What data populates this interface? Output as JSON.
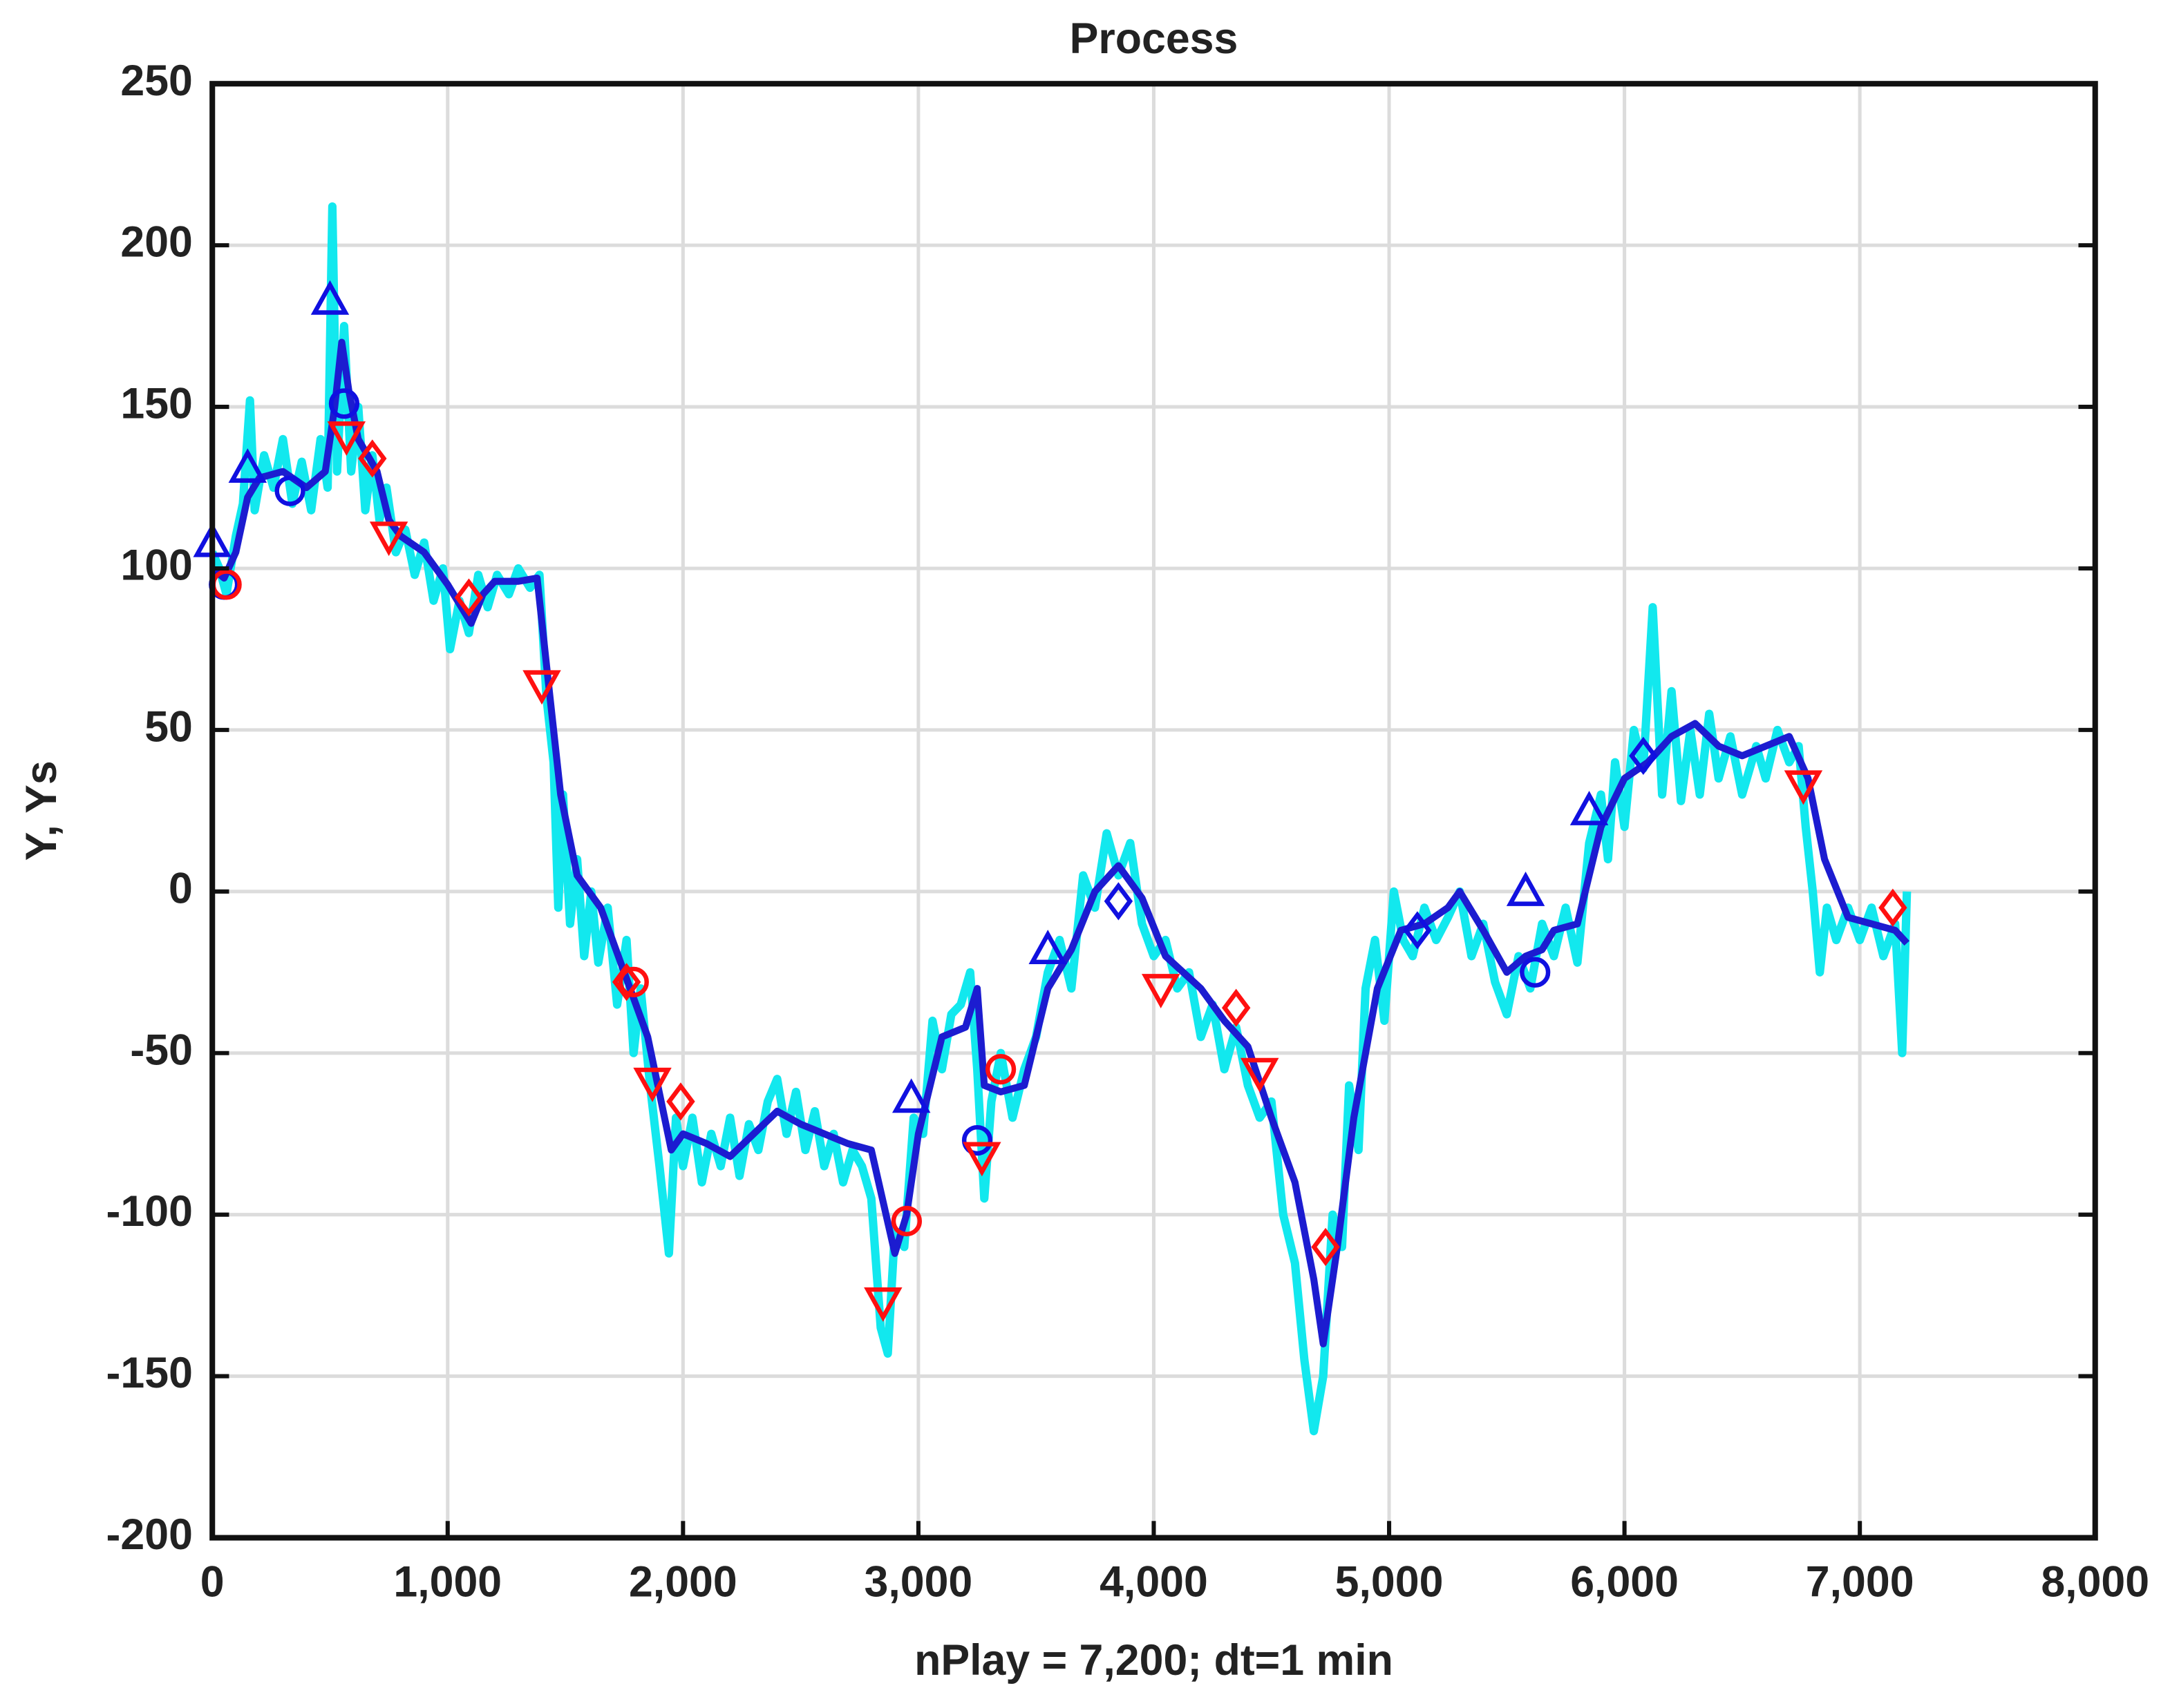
{
  "chart_data": {
    "type": "line",
    "title": "Process",
    "x_label": "nPlay = 7,200;   dt=1 min",
    "y_label": "Y,  Ys",
    "xlim": [
      0,
      8000
    ],
    "ylim": [
      -200,
      250
    ],
    "grid": true,
    "xticks": [
      0,
      {
        "value": 1000,
        "label": "1,000"
      },
      {
        "value": 2000,
        "label": "2,000"
      },
      {
        "value": 3000,
        "label": "3,000"
      },
      {
        "value": 4000,
        "label": "4,000"
      },
      {
        "value": 5000,
        "label": "5,000"
      },
      {
        "value": 6000,
        "label": "6,000"
      },
      {
        "value": 7000,
        "label": "7,000"
      },
      {
        "value": 8000,
        "label": "8,000"
      }
    ],
    "yticks": [
      -200,
      -150,
      -100,
      -50,
      0,
      50,
      100,
      150,
      200,
      250
    ],
    "series": [
      {
        "color": "#12e8ee",
        "width": 6,
        "x": [
          0,
          30,
          60,
          100,
          130,
          160,
          180,
          220,
          260,
          300,
          340,
          380,
          420,
          460,
          490,
          510,
          530,
          560,
          590,
          620,
          650,
          680,
          710,
          740,
          780,
          820,
          860,
          900,
          940,
          980,
          1010,
          1050,
          1090,
          1130,
          1170,
          1210,
          1260,
          1300,
          1350,
          1390,
          1420,
          1450,
          1470,
          1490,
          1520,
          1550,
          1580,
          1610,
          1640,
          1680,
          1720,
          1760,
          1790,
          1820,
          1860,
          1900,
          1940,
          1970,
          2000,
          2040,
          2080,
          2120,
          2160,
          2200,
          2240,
          2280,
          2320,
          2360,
          2400,
          2440,
          2480,
          2520,
          2560,
          2600,
          2640,
          2680,
          2720,
          2760,
          2800,
          2840,
          2870,
          2900,
          2940,
          2980,
          3020,
          3060,
          3100,
          3140,
          3180,
          3220,
          3250,
          3280,
          3310,
          3350,
          3400,
          3450,
          3500,
          3550,
          3600,
          3650,
          3700,
          3750,
          3800,
          3850,
          3900,
          3950,
          4000,
          4050,
          4100,
          4150,
          4200,
          4250,
          4300,
          4350,
          4400,
          4450,
          4500,
          4550,
          4600,
          4640,
          4680,
          4720,
          4760,
          4800,
          4830,
          4870,
          4900,
          4940,
          4980,
          5020,
          5060,
          5100,
          5150,
          5200,
          5250,
          5300,
          5350,
          5400,
          5450,
          5500,
          5550,
          5600,
          5650,
          5700,
          5750,
          5800,
          5850,
          5900,
          5930,
          5960,
          6000,
          6040,
          6080,
          6120,
          6160,
          6200,
          6240,
          6280,
          6320,
          6360,
          6400,
          6450,
          6500,
          6560,
          6600,
          6650,
          6700,
          6740,
          6770,
          6800,
          6830,
          6860,
          6900,
          6950,
          7000,
          7050,
          7100,
          7150,
          7180,
          7200
        ],
        "values": [
          105,
          100,
          92,
          110,
          120,
          152,
          118,
          135,
          125,
          140,
          120,
          133,
          118,
          140,
          125,
          212,
          130,
          175,
          130,
          150,
          118,
          135,
          115,
          125,
          105,
          112,
          98,
          108,
          90,
          100,
          75,
          90,
          80,
          98,
          88,
          98,
          92,
          100,
          94,
          98,
          60,
          40,
          -5,
          30,
          -10,
          10,
          -20,
          0,
          -22,
          -5,
          -35,
          -15,
          -50,
          -30,
          -60,
          -85,
          -112,
          -70,
          -85,
          -70,
          -90,
          -75,
          -85,
          -70,
          -88,
          -72,
          -80,
          -65,
          -58,
          -75,
          -62,
          -80,
          -68,
          -85,
          -75,
          -90,
          -80,
          -85,
          -95,
          -135,
          -143,
          -105,
          -110,
          -70,
          -75,
          -40,
          -55,
          -38,
          -35,
          -25,
          -55,
          -95,
          -65,
          -50,
          -70,
          -55,
          -45,
          -25,
          -15,
          -30,
          5,
          -5,
          18,
          5,
          15,
          -10,
          -20,
          -15,
          -30,
          -25,
          -45,
          -35,
          -55,
          -42,
          -60,
          -70,
          -65,
          -100,
          -115,
          -145,
          -167,
          -150,
          -100,
          -110,
          -60,
          -80,
          -30,
          -15,
          -40,
          0,
          -15,
          -20,
          -5,
          -15,
          -8,
          0,
          -20,
          -10,
          -28,
          -38,
          -20,
          -30,
          -10,
          -20,
          -5,
          -22,
          15,
          30,
          10,
          40,
          20,
          50,
          38,
          88,
          30,
          62,
          28,
          50,
          30,
          55,
          35,
          48,
          30,
          45,
          35,
          50,
          40,
          45,
          20,
          0,
          -25,
          -5,
          -15,
          -5,
          -15,
          -5,
          -20,
          -10,
          -50,
          0
        ]
      },
      {
        "color": "#1c1cd0",
        "width": 5,
        "x": [
          0,
          50,
          100,
          150,
          200,
          300,
          400,
          480,
          520,
          550,
          580,
          620,
          700,
          750,
          800,
          900,
          1000,
          1100,
          1150,
          1200,
          1300,
          1380,
          1420,
          1480,
          1550,
          1650,
          1750,
          1850,
          1950,
          2000,
          2100,
          2200,
          2300,
          2400,
          2500,
          2600,
          2700,
          2800,
          2900,
          2950,
          3000,
          3100,
          3200,
          3250,
          3280,
          3350,
          3450,
          3550,
          3650,
          3750,
          3850,
          3950,
          4050,
          4200,
          4300,
          4400,
          4500,
          4600,
          4680,
          4720,
          4780,
          4850,
          4950,
          5050,
          5150,
          5250,
          5300,
          5400,
          5500,
          5580,
          5650,
          5700,
          5800,
          5900,
          6000,
          6100,
          6200,
          6300,
          6400,
          6500,
          6600,
          6700,
          6780,
          6850,
          6950,
          7050,
          7150,
          7200
        ],
        "values": [
          100,
          97,
          105,
          122,
          128,
          130,
          125,
          130,
          150,
          170,
          155,
          140,
          130,
          115,
          110,
          105,
          95,
          83,
          92,
          96,
          96,
          97,
          70,
          30,
          5,
          -5,
          -25,
          -45,
          -80,
          -75,
          -78,
          -82,
          -75,
          -68,
          -72,
          -75,
          -78,
          -80,
          -112,
          -100,
          -75,
          -45,
          -42,
          -30,
          -60,
          -62,
          -60,
          -30,
          -18,
          0,
          8,
          -2,
          -20,
          -30,
          -40,
          -48,
          -70,
          -90,
          -120,
          -140,
          -110,
          -70,
          -30,
          -12,
          -10,
          -5,
          0,
          -12,
          -25,
          -20,
          -18,
          -12,
          -10,
          20,
          35,
          40,
          48,
          52,
          45,
          42,
          45,
          48,
          35,
          10,
          -8,
          -10,
          -12,
          -16
        ]
      },
      {
        "color": "#1010e0",
        "marker": "triangle-up",
        "x": [
          0,
          150,
          500,
          2970,
          3550,
          5580,
          5850
        ],
        "values": [
          108,
          131,
          183,
          -64,
          -18,
          0,
          25
        ]
      },
      {
        "color": "#1010e0",
        "marker": "circle",
        "x": [
          50,
          330,
          560,
          3250,
          5620
        ],
        "values": [
          95,
          124,
          151,
          -77,
          -25
        ]
      },
      {
        "color": "#1010e0",
        "marker": "diamond",
        "x": [
          3850,
          5120,
          6080
        ],
        "values": [
          -3,
          -12,
          42
        ]
      },
      {
        "color": "#ff1010",
        "marker": "triangle-down",
        "x": [
          570,
          750,
          1400,
          1870,
          2850,
          3270,
          4030,
          4450,
          6760
        ],
        "values": [
          141,
          110,
          64,
          -59,
          -127,
          -82,
          -30,
          -56,
          33
        ]
      },
      {
        "color": "#ff1010",
        "marker": "circle",
        "x": [
          60,
          1790,
          2950,
          3350
        ],
        "values": [
          95,
          -28,
          -102,
          -55
        ]
      },
      {
        "color": "#ff1010",
        "marker": "diamond",
        "x": [
          680,
          1090,
          1760,
          1990,
          4350,
          4730,
          7140
        ],
        "values": [
          134,
          91,
          -28,
          -65,
          -36,
          -110,
          -5
        ]
      }
    ]
  }
}
